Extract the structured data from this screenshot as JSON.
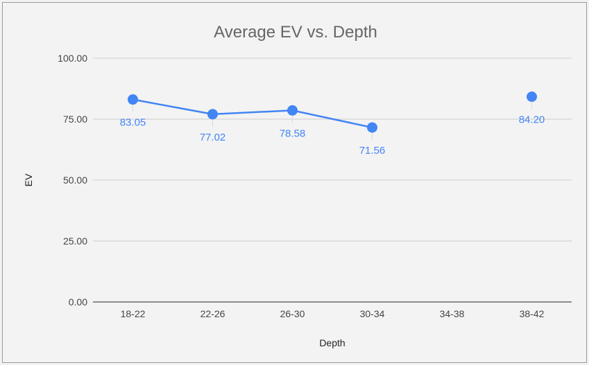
{
  "chart_data": {
    "type": "line",
    "title": "Average EV vs. Depth",
    "xlabel": "Depth",
    "ylabel": "EV",
    "categories": [
      "18-22",
      "22-26",
      "26-30",
      "30-34",
      "34-38",
      "38-42"
    ],
    "series": [
      {
        "values": [
          83.05,
          77.02,
          78.58,
          71.56,
          null,
          84.2
        ],
        "labels": [
          "83.05",
          "77.02",
          "78.58",
          "71.56",
          "",
          "84.20"
        ],
        "color": "#4285f4"
      }
    ],
    "ylim": [
      0,
      100
    ],
    "yticks": [
      "0.00",
      "25.00",
      "50.00",
      "75.00",
      "100.00"
    ],
    "ytick_values": [
      0,
      25,
      50,
      75,
      100
    ],
    "grid": true,
    "legend": "none"
  }
}
